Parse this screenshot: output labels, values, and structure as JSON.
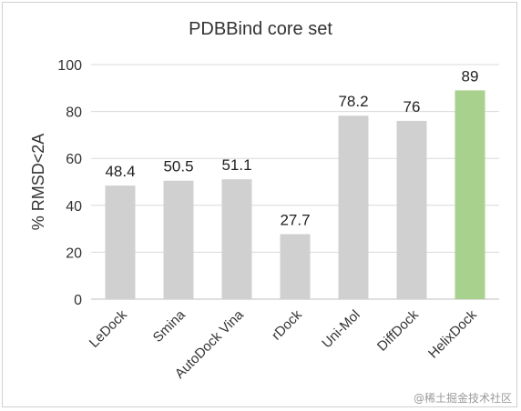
{
  "chart_data": {
    "type": "bar",
    "title": "PDBBind core set",
    "xlabel": "",
    "ylabel": "% RMSD<2A",
    "ylim": [
      0,
      100
    ],
    "yticks": [
      "0",
      "20",
      "40",
      "60",
      "80",
      "100"
    ],
    "categories": [
      "LeDock",
      "Smina",
      "AutoDock Vina",
      "rDock",
      "Uni-Mol",
      "DiffDock",
      "HelixDock"
    ],
    "values": [
      48.4,
      50.5,
      51.1,
      27.7,
      78.2,
      76,
      89
    ],
    "data_labels": [
      "48.4",
      "50.5",
      "51.1",
      "27.7",
      "78.2",
      "76",
      "89"
    ],
    "bar_colors": [
      "#d0d0d0",
      "#d0d0d0",
      "#d0d0d0",
      "#d0d0d0",
      "#d0d0d0",
      "#d0d0d0",
      "#a9d18e"
    ],
    "grid": true,
    "legend": "none"
  },
  "watermark": "@稀土掘金技术社区"
}
